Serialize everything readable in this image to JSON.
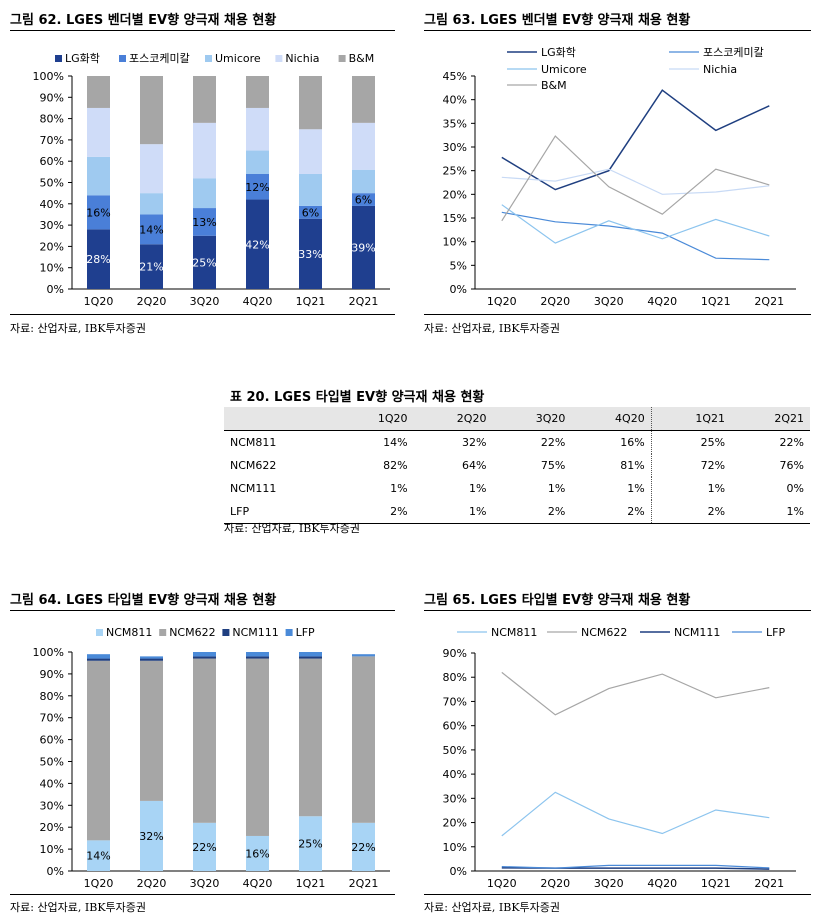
{
  "source_note": "자료: 산업자료, IBK투자증권",
  "charts": [
    {
      "id": "fig62",
      "title": "그림 62. LGES 벤더별 EV향 양극재 채용 현황",
      "type": "stacked-bar",
      "categories": [
        "1Q20",
        "2Q20",
        "3Q20",
        "4Q20",
        "1Q21",
        "2Q21"
      ],
      "y_ticks": [
        "0%",
        "10%",
        "20%",
        "30%",
        "40%",
        "50%",
        "60%",
        "70%",
        "80%",
        "90%",
        "100%"
      ],
      "series": [
        {
          "name": "LG화학",
          "color": "#1f3f8f",
          "values": [
            28,
            21,
            25,
            42,
            33,
            39
          ],
          "labels": [
            "28%",
            "21%",
            "25%",
            "42%",
            "33%",
            "39%"
          ],
          "label_color": "#ffffff"
        },
        {
          "name": "포스코케미칼",
          "color": "#4a7fd8",
          "values": [
            16,
            14,
            13,
            12,
            6,
            6
          ],
          "labels": [
            "16%",
            "14%",
            "13%",
            "12%",
            "6%",
            "6%"
          ],
          "label_color": "#000000"
        },
        {
          "name": "Umicore",
          "color": "#9fcaf0",
          "values": [
            18,
            10,
            14,
            11,
            15,
            11
          ],
          "labels": [],
          "label_color": "#000000"
        },
        {
          "name": "Nichia",
          "color": "#cfdcf8",
          "values": [
            23,
            23,
            26,
            20,
            21,
            22
          ],
          "labels": [],
          "label_color": "#000000"
        },
        {
          "name": "B&M",
          "color": "#a6a6a6",
          "values": [
            15,
            32,
            22,
            15,
            25,
            22
          ],
          "labels": [],
          "label_color": "#000000"
        }
      ]
    },
    {
      "id": "fig63",
      "title": "그림 63. LGES 벤더별 EV향 양극재 채용 현황",
      "type": "line",
      "categories": [
        "1Q20",
        "2Q20",
        "3Q20",
        "4Q20",
        "1Q21",
        "2Q21"
      ],
      "y_ticks": [
        "0%",
        "5%",
        "10%",
        "15%",
        "20%",
        "25%",
        "30%",
        "35%",
        "40%",
        "45%"
      ],
      "ylim": [
        0,
        45
      ],
      "series": [
        {
          "name": "LG화학",
          "color": "#1f3f80",
          "width": 1.5,
          "values": [
            27.8,
            21,
            25,
            42,
            33.5,
            38.7
          ]
        },
        {
          "name": "포스코케미칼",
          "color": "#4a8ad8",
          "width": 1.2,
          "values": [
            16.2,
            14.2,
            13.3,
            11.8,
            6.5,
            6.2
          ]
        },
        {
          "name": "Umicore",
          "color": "#8cc4ee",
          "width": 1.2,
          "values": [
            17.8,
            9.7,
            14.4,
            10.6,
            14.7,
            11.2
          ]
        },
        {
          "name": "Nichia",
          "color": "#c8daf5",
          "width": 1.2,
          "values": [
            23.6,
            22.8,
            25.3,
            20,
            20.5,
            21.8
          ]
        },
        {
          "name": "B&M",
          "color": "#a6a6a6",
          "width": 1.2,
          "values": [
            14.4,
            32.3,
            21.6,
            15.8,
            25.3,
            22
          ]
        }
      ]
    },
    {
      "id": "fig64",
      "title": "그림 64. LGES 타입별 EV향 양극재 채용 현황",
      "type": "stacked-bar",
      "categories": [
        "1Q20",
        "2Q20",
        "3Q20",
        "4Q20",
        "1Q21",
        "2Q21"
      ],
      "y_ticks": [
        "0%",
        "10%",
        "20%",
        "30%",
        "40%",
        "50%",
        "60%",
        "70%",
        "80%",
        "90%",
        "100%"
      ],
      "series": [
        {
          "name": "NCM811",
          "color": "#a8d4f5",
          "values": [
            14,
            32,
            22,
            16,
            25,
            22
          ],
          "labels": [
            "14%",
            "32%",
            "22%",
            "16%",
            "25%",
            "22%"
          ],
          "label_color": "#000000"
        },
        {
          "name": "NCM622",
          "color": "#a6a6a6",
          "values": [
            82,
            64,
            75,
            81,
            72,
            76
          ],
          "labels": [],
          "label_color": "#000000"
        },
        {
          "name": "NCM111",
          "color": "#1f3f80",
          "values": [
            1,
            1,
            1,
            1,
            1,
            0
          ],
          "labels": [],
          "label_color": "#000000"
        },
        {
          "name": "LFP",
          "color": "#4a8ad8",
          "values": [
            2,
            1,
            2,
            2,
            2,
            1
          ],
          "labels": [],
          "label_color": "#000000"
        }
      ]
    },
    {
      "id": "fig65",
      "title": "그림 65. LGES 타입별 EV향 양극재 채용 현황",
      "type": "line",
      "categories": [
        "1Q20",
        "2Q20",
        "3Q20",
        "4Q20",
        "1Q21",
        "2Q21"
      ],
      "y_ticks": [
        "0%",
        "10%",
        "20%",
        "30%",
        "40%",
        "50%",
        "60%",
        "70%",
        "80%",
        "90%"
      ],
      "ylim": [
        0,
        90
      ],
      "series": [
        {
          "name": "NCM811",
          "color": "#8cc4ee",
          "width": 1.2,
          "values": [
            14.5,
            32.5,
            21.5,
            15.5,
            25.2,
            22
          ]
        },
        {
          "name": "NCM622",
          "color": "#a6a6a6",
          "width": 1.2,
          "values": [
            82,
            64.5,
            75.3,
            81.3,
            71.5,
            75.7
          ]
        },
        {
          "name": "NCM111",
          "color": "#1f3f80",
          "width": 1.5,
          "values": [
            1.3,
            1.2,
            1.2,
            1.2,
            1.2,
            0.8
          ]
        },
        {
          "name": "LFP",
          "color": "#4a8ad8",
          "width": 1.2,
          "values": [
            1.8,
            1.2,
            2.3,
            2.3,
            2.3,
            1.3
          ]
        }
      ]
    }
  ],
  "table": {
    "title": "표 20. LGES 타입별 EV향 양극재 채용 현황",
    "columns": [
      "1Q20",
      "2Q20",
      "3Q20",
      "4Q20",
      "1Q21",
      "2Q21"
    ],
    "rows": [
      {
        "label": "NCM811",
        "cells": [
          "14%",
          "32%",
          "22%",
          "16%",
          "25%",
          "22%"
        ]
      },
      {
        "label": "NCM622",
        "cells": [
          "82%",
          "64%",
          "75%",
          "81%",
          "72%",
          "76%"
        ]
      },
      {
        "label": "NCM111",
        "cells": [
          "1%",
          "1%",
          "1%",
          "1%",
          "1%",
          "0%"
        ]
      },
      {
        "label": "LFP",
        "cells": [
          "2%",
          "1%",
          "2%",
          "2%",
          "2%",
          "1%"
        ]
      }
    ]
  },
  "chart_data": [
    {
      "type": "bar",
      "title": "그림 62. LGES 벤더별 EV향 양극재 채용 현황",
      "categories": [
        "1Q20",
        "2Q20",
        "3Q20",
        "4Q20",
        "1Q21",
        "2Q21"
      ],
      "series": [
        {
          "name": "LG화학",
          "values": [
            28,
            21,
            25,
            42,
            33,
            39
          ]
        },
        {
          "name": "포스코케미칼",
          "values": [
            16,
            14,
            13,
            12,
            6,
            6
          ]
        },
        {
          "name": "Umicore",
          "values": [
            18,
            10,
            14,
            11,
            15,
            11
          ]
        },
        {
          "name": "Nichia",
          "values": [
            23,
            23,
            26,
            20,
            21,
            22
          ]
        },
        {
          "name": "B&M",
          "values": [
            15,
            32,
            22,
            15,
            25,
            22
          ]
        }
      ],
      "ylim": [
        0,
        100
      ],
      "stacked": true
    },
    {
      "type": "line",
      "title": "그림 63. LGES 벤더별 EV향 양극재 채용 현황",
      "categories": [
        "1Q20",
        "2Q20",
        "3Q20",
        "4Q20",
        "1Q21",
        "2Q21"
      ],
      "series": [
        {
          "name": "LG화학",
          "values": [
            27.8,
            21,
            25,
            42,
            33.5,
            38.7
          ]
        },
        {
          "name": "포스코케미칼",
          "values": [
            16.2,
            14.2,
            13.3,
            11.8,
            6.5,
            6.2
          ]
        },
        {
          "name": "Umicore",
          "values": [
            17.8,
            9.7,
            14.4,
            10.6,
            14.7,
            11.2
          ]
        },
        {
          "name": "Nichia",
          "values": [
            23.6,
            22.8,
            25.3,
            20,
            20.5,
            21.8
          ]
        },
        {
          "name": "B&M",
          "values": [
            14.4,
            32.3,
            21.6,
            15.8,
            25.3,
            22
          ]
        }
      ],
      "ylim": [
        0,
        45
      ]
    },
    {
      "type": "bar",
      "title": "그림 64. LGES 타입별 EV향 양극재 채용 현황",
      "categories": [
        "1Q20",
        "2Q20",
        "3Q20",
        "4Q20",
        "1Q21",
        "2Q21"
      ],
      "series": [
        {
          "name": "NCM811",
          "values": [
            14,
            32,
            22,
            16,
            25,
            22
          ]
        },
        {
          "name": "NCM622",
          "values": [
            82,
            64,
            75,
            81,
            72,
            76
          ]
        },
        {
          "name": "NCM111",
          "values": [
            1,
            1,
            1,
            1,
            1,
            0
          ]
        },
        {
          "name": "LFP",
          "values": [
            2,
            1,
            2,
            2,
            2,
            1
          ]
        }
      ],
      "ylim": [
        0,
        100
      ],
      "stacked": true
    },
    {
      "type": "line",
      "title": "그림 65. LGES 타입별 EV향 양극재 채용 현황",
      "categories": [
        "1Q20",
        "2Q20",
        "3Q20",
        "4Q20",
        "1Q21",
        "2Q21"
      ],
      "series": [
        {
          "name": "NCM811",
          "values": [
            14.5,
            32.5,
            21.5,
            15.5,
            25.2,
            22
          ]
        },
        {
          "name": "NCM622",
          "values": [
            82,
            64.5,
            75.3,
            81.3,
            71.5,
            75.7
          ]
        },
        {
          "name": "NCM111",
          "values": [
            1.3,
            1.2,
            1.2,
            1.2,
            1.2,
            0.8
          ]
        },
        {
          "name": "LFP",
          "values": [
            1.8,
            1.2,
            2.3,
            2.3,
            2.3,
            1.3
          ]
        }
      ],
      "ylim": [
        0,
        90
      ]
    }
  ]
}
